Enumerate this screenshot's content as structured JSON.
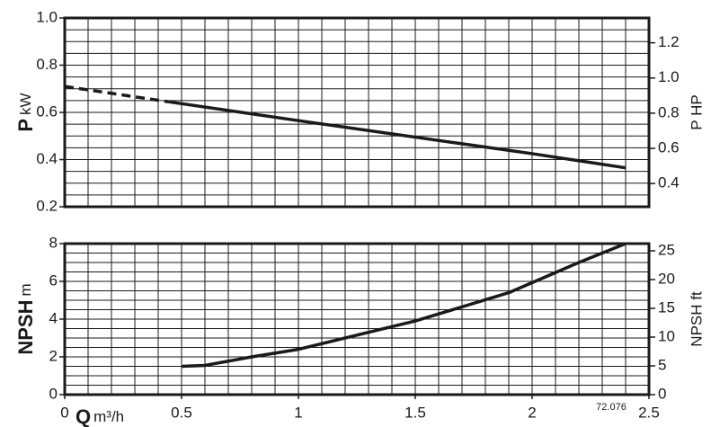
{
  "chart_data": [
    {
      "type": "line",
      "ylabel": {
        "symbol": "P",
        "unit": "kW"
      },
      "y2label": "P HP",
      "xlim": [
        0,
        2.5
      ],
      "ylim": [
        0.2,
        1.0
      ],
      "yticks": [
        0.2,
        0.4,
        0.6,
        0.8,
        {
          "value": 1.0,
          "label": "1.0"
        }
      ],
      "y2lim": [
        0.268,
        1.341
      ],
      "y2ticks": [
        0.4,
        0.6,
        0.8,
        {
          "value": 1.0,
          "label": "1.0"
        },
        1.2
      ],
      "x_grid_step": 0.1,
      "y_grid_step": 0.05,
      "color": "#1a1a1a",
      "series": [
        {
          "dashed": true,
          "x": [
            0,
            0.45
          ],
          "values": [
            0.71,
            0.644
          ]
        },
        {
          "dashed": false,
          "x": [
            0.45,
            1.0,
            1.5,
            2.0,
            2.4
          ],
          "values": [
            0.644,
            0.565,
            0.495,
            0.425,
            0.365
          ]
        }
      ]
    },
    {
      "type": "line",
      "ylabel": {
        "symbol": "NPSH",
        "unit": "m"
      },
      "y2label": "NPSH ft",
      "xlabel": {
        "symbol": "Q",
        "unit": "m³/h"
      },
      "annotation": "72.076",
      "xlim": [
        0,
        2.5
      ],
      "xticks": [
        0,
        0.5,
        1,
        1.5,
        2,
        2.5
      ],
      "ylim": [
        0,
        8
      ],
      "yticks": [
        0,
        2,
        4,
        6,
        8
      ],
      "y2lim": [
        0,
        26.25
      ],
      "y2ticks": [
        0,
        5,
        10,
        15,
        20,
        25
      ],
      "x_grid_step": 0.1,
      "y_grid_step": 0.5,
      "color": "#1a1a1a",
      "series": [
        {
          "dashed": false,
          "x": [
            0.5,
            0.6,
            0.8,
            1.0,
            1.5,
            1.9,
            2.2,
            2.4
          ],
          "values": [
            1.5,
            1.55,
            2.0,
            2.4,
            3.9,
            5.4,
            7.0,
            8.0
          ]
        }
      ]
    }
  ]
}
